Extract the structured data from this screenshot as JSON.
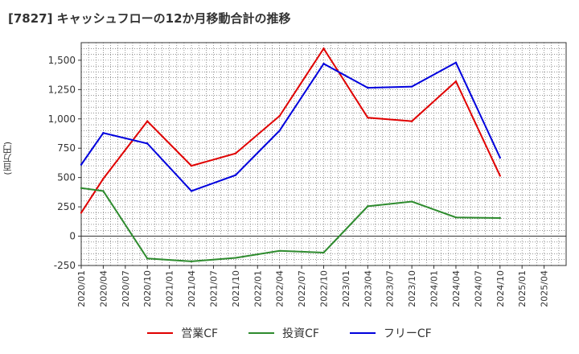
{
  "chart_data": {
    "type": "line",
    "title": "[7827]  キャッシュフローの12か月移動合計の推移",
    "ylabel": "(百万円)",
    "xlabel": "",
    "ylim": [
      -250,
      1650
    ],
    "y_ticks": [
      -250,
      0,
      250,
      500,
      750,
      1000,
      1250,
      1500
    ],
    "y_tick_labels": [
      "-250",
      "0",
      "250",
      "500",
      "750",
      "1,000",
      "1,250",
      "1,500"
    ],
    "x_tick_labels": [
      "2020/01",
      "2020/04",
      "2020/07",
      "2020/10",
      "2021/01",
      "2021/04",
      "2021/07",
      "2021/10",
      "2022/01",
      "2022/04",
      "2022/07",
      "2022/10",
      "2023/01",
      "2023/04",
      "2023/07",
      "2023/10",
      "2024/01",
      "2024/04",
      "2024/07",
      "2024/10",
      "2025/01",
      "2025/04"
    ],
    "grid": true,
    "legend_position": "bottom",
    "series": [
      {
        "name": "営業CF",
        "color": "#e00000",
        "points": [
          [
            "2020/01",
            200
          ],
          [
            "2020/04",
            490
          ],
          [
            "2020/10",
            980
          ],
          [
            "2021/04",
            600
          ],
          [
            "2021/10",
            705
          ],
          [
            "2022/04",
            1025
          ],
          [
            "2022/10",
            1600
          ],
          [
            "2023/04",
            1010
          ],
          [
            "2023/10",
            980
          ],
          [
            "2024/04",
            1320
          ],
          [
            "2024/10",
            515
          ]
        ]
      },
      {
        "name": "投資CF",
        "color": "#2e8b2e",
        "points": [
          [
            "2020/01",
            410
          ],
          [
            "2020/04",
            385
          ],
          [
            "2020/10",
            -190
          ],
          [
            "2021/04",
            -215
          ],
          [
            "2021/10",
            -185
          ],
          [
            "2022/04",
            -125
          ],
          [
            "2022/10",
            -140
          ],
          [
            "2023/04",
            255
          ],
          [
            "2023/10",
            295
          ],
          [
            "2024/04",
            160
          ],
          [
            "2024/10",
            155
          ]
        ]
      },
      {
        "name": "フリーCF",
        "color": "#0000dd",
        "points": [
          [
            "2020/01",
            610
          ],
          [
            "2020/04",
            880
          ],
          [
            "2020/10",
            790
          ],
          [
            "2021/04",
            385
          ],
          [
            "2021/10",
            520
          ],
          [
            "2022/04",
            900
          ],
          [
            "2022/10",
            1470
          ],
          [
            "2023/04",
            1265
          ],
          [
            "2023/10",
            1275
          ],
          [
            "2024/04",
            1480
          ],
          [
            "2024/10",
            670
          ]
        ]
      }
    ]
  }
}
